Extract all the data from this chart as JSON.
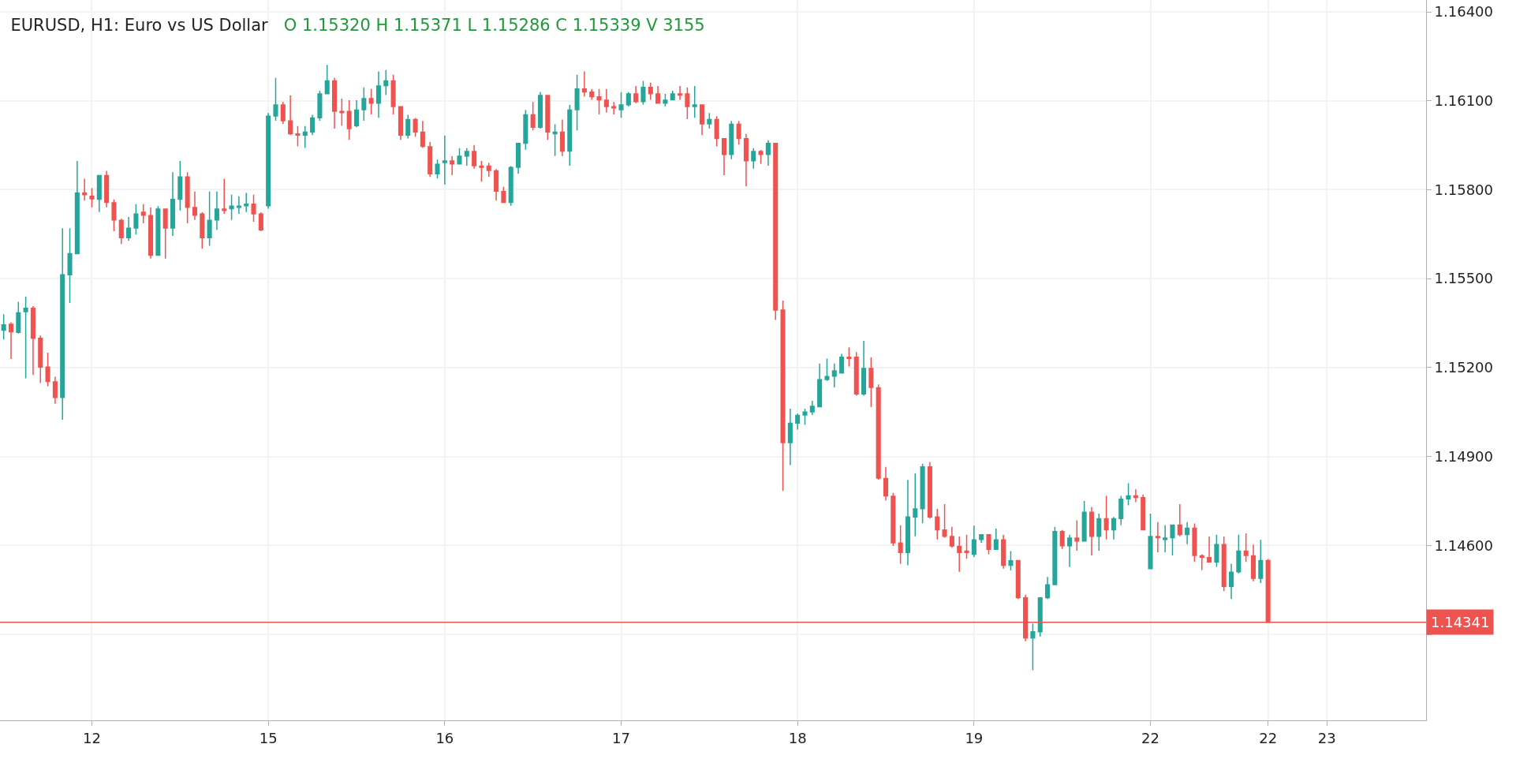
{
  "chart_data": {
    "type": "candlestick",
    "title": "EURUSD, H1: Euro vs US Dollar",
    "subtitle": "O 1.15320 H 1.15371 L 1.15286 C 1.15339 V 3155",
    "colors": [
      "#26a69a",
      "#ef5350",
      "#26a69a",
      "#26a69a",
      "#ef5350",
      "#ef5350",
      "#ef5350",
      "#ef5350",
      "#26a69a",
      "#26a69a",
      "#26a69a",
      "#ef5350",
      "#ef5350",
      "#26a69a",
      "#ef5350",
      "#ef5350",
      "#ef5350",
      "#26a69a",
      "#26a69a",
      "#ef5350",
      "#ef5350",
      "#26a69a",
      "#ef5350",
      "#26a69a",
      "#26a69a",
      "#ef5350",
      "#ef5350",
      "#ef5350",
      "#26a69a",
      "#26a69a",
      "#ef5350",
      "#26a69a",
      "#26a69a",
      "#26a69a",
      "#ef5350",
      "#ef5350",
      "#26a69a",
      "#26a69a",
      "#ef5350",
      "#ef5350",
      "#ef5350",
      "#26a69a",
      "#26a69a",
      "#26a69a",
      "#26a69a",
      "#ef5350",
      "#ef5350",
      "#ef5350",
      "#26a69a",
      "#26a69a",
      "#ef5350",
      "#26a69a",
      "#26a69a",
      "#ef5350",
      "#ef5350",
      "#26a69a",
      "#ef5350",
      "#ef5350",
      "#ef5350",
      "#26a69a",
      "#26a69a",
      "#ef5350",
      "#26a69a",
      "#26a69a",
      "#ef5350",
      "#ef5350",
      "#ef5350",
      "#ef5350",
      "#ef5350",
      "#26a69a",
      "#26a69a",
      "#26a69a",
      "#ef5350",
      "#26a69a",
      "#ef5350",
      "#26a69a",
      "#ef5350",
      "#26a69a",
      "#26a69a",
      "#ef5350",
      "#ef5350",
      "#ef5350",
      "#ef5350",
      "#ef5350",
      "#26a69a",
      "#26a69a",
      "#ef5350",
      "#26a69a",
      "#ef5350",
      "#ef5350",
      "#26a69a",
      "#26a69a",
      "#ef5350",
      "#ef5350",
      "#26a69a",
      "#ef5350",
      "#26a69a",
      "#ef5350",
      "#ef5350",
      "#26a69a",
      "#ef5350",
      "#ef5350",
      "#26a69a",
      "#ef5350",
      "#26a69a",
      "#ef5350",
      "#ef5350",
      "#26a69a",
      "#26a69a",
      "#26a69a",
      "#26a69a",
      "#26a69a",
      "#26a69a",
      "#26a69a",
      "#26a69a",
      "#ef5350",
      "#ef5350",
      "#26a69a",
      "#ef5350",
      "#ef5350",
      "#ef5350",
      "#ef5350",
      "#ef5350",
      "#26a69a",
      "#26a69a",
      "#26a69a",
      "#ef5350",
      "#ef5350",
      "#ef5350",
      "#ef5350",
      "#ef5350",
      "#ef5350",
      "#26a69a",
      "#26a69a",
      "#ef5350",
      "#26a69a",
      "#ef5350",
      "#26a69a",
      "#ef5350",
      "#ef5350",
      "#26a69a",
      "#26a69a",
      "#26a69a",
      "#26a69a",
      "#ef5350",
      "#26a69a",
      "#ef5350",
      "#26a69a",
      "#ef5350",
      "#26a69a",
      "#ef5350",
      "#26a69a",
      "#26a69a",
      "#26a69a",
      "#ef5350",
      "#ef5350",
      "#26a69a",
      "#ef5350",
      "#26a69a",
      "#26a69a",
      "#ef5350",
      "#26a69a",
      "#ef5350",
      "#ef5350",
      "#ef5350",
      "#26a69a",
      "#ef5350",
      "#26a69a",
      "#26a69a",
      "#ef5350",
      "#ef5350",
      "#26a69a",
      "#ef5350",
      null,
      null,
      null,
      null,
      null,
      null,
      null,
      null,
      null,
      null,
      null,
      null,
      null,
      null,
      null,
      null,
      null,
      null,
      null,
      null,
      null
    ],
    "categories": [
      null,
      null,
      null,
      null,
      null,
      null,
      null,
      null,
      null,
      null,
      null,
      null,
      "12",
      null,
      null,
      null,
      null,
      null,
      null,
      null,
      null,
      null,
      null,
      null,
      null,
      null,
      null,
      null,
      null,
      null,
      null,
      null,
      null,
      null,
      null,
      null,
      "15",
      null,
      null,
      null,
      null,
      null,
      null,
      null,
      null,
      null,
      null,
      null,
      null,
      null,
      null,
      null,
      null,
      null,
      null,
      null,
      null,
      null,
      null,
      null,
      "16",
      null,
      null,
      null,
      null,
      null,
      null,
      null,
      null,
      null,
      null,
      null,
      null,
      null,
      null,
      null,
      null,
      null,
      null,
      null,
      null,
      null,
      null,
      null,
      "17",
      null,
      null,
      null,
      null,
      null,
      null,
      null,
      null,
      null,
      null,
      null,
      null,
      null,
      null,
      null,
      null,
      null,
      null,
      null,
      null,
      null,
      null,
      null,
      "18",
      null,
      null,
      null,
      null,
      null,
      null,
      null,
      null,
      null,
      null,
      null,
      null,
      null,
      null,
      null,
      null,
      null,
      null,
      null,
      null,
      null,
      null,
      null,
      "19",
      null,
      null,
      null,
      null,
      null,
      null,
      null,
      null,
      null,
      null,
      null,
      null,
      null,
      null,
      null,
      null,
      null,
      null,
      null,
      null,
      null,
      null,
      null,
      "22",
      null,
      null,
      null,
      null,
      null,
      null,
      null,
      null,
      null,
      null,
      null,
      null,
      null,
      null,
      null,
      "22",
      null,
      null,
      null,
      null,
      null,
      null,
      null,
      "23",
      null,
      null,
      null,
      null,
      null,
      null,
      null,
      null,
      null,
      null,
      null,
      null,
      null
    ],
    "ohlc": [
      [
        1.15326,
        1.1538,
        1.15295,
        1.15344
      ],
      [
        1.15346,
        1.15353,
        1.15229,
        1.15321
      ],
      [
        1.15319,
        1.15422,
        1.15315,
        1.15385
      ],
      [
        1.15389,
        1.15439,
        1.15164,
        1.154
      ],
      [
        1.154,
        1.15407,
        1.15175,
        1.15299
      ],
      [
        1.15299,
        1.15308,
        1.15148,
        1.15202
      ],
      [
        1.15202,
        1.1525,
        1.15137,
        1.15153
      ],
      [
        1.15152,
        1.15169,
        1.15078,
        1.15099
      ],
      [
        1.15099,
        1.1567,
        1.15024,
        1.15513
      ],
      [
        1.15513,
        1.1567,
        1.15418,
        1.15584
      ],
      [
        1.15584,
        1.15897,
        1.15584,
        1.15789
      ],
      [
        1.15789,
        1.15837,
        1.15763,
        1.15783
      ],
      [
        1.15778,
        1.15805,
        1.15741,
        1.15769
      ],
      [
        1.15768,
        1.15848,
        1.15725,
        1.15848
      ],
      [
        1.15848,
        1.15864,
        1.15741,
        1.15757
      ],
      [
        1.15756,
        1.15767,
        1.1566,
        1.15698
      ],
      [
        1.15697,
        1.15702,
        1.15617,
        1.15638
      ],
      [
        1.15638,
        1.15708,
        1.15628,
        1.1567
      ],
      [
        1.15671,
        1.15751,
        1.15649,
        1.15718
      ],
      [
        1.15724,
        1.15751,
        1.15687,
        1.15714
      ],
      [
        1.15713,
        1.1574,
        1.15568,
        1.15579
      ],
      [
        1.15579,
        1.15745,
        1.15579,
        1.15735
      ],
      [
        1.15735,
        1.15735,
        1.15568,
        1.15671
      ],
      [
        1.15671,
        1.15859,
        1.15644,
        1.15767
      ],
      [
        1.15768,
        1.15897,
        1.1573,
        1.15843
      ],
      [
        1.15843,
        1.15859,
        1.15687,
        1.15741
      ],
      [
        1.1574,
        1.15794,
        1.15698,
        1.15714
      ],
      [
        1.15718,
        1.15724,
        1.15601,
        1.15638
      ],
      [
        1.15638,
        1.15794,
        1.15611,
        1.15697
      ],
      [
        1.15698,
        1.15794,
        1.15665,
        1.15735
      ],
      [
        1.15735,
        1.15837,
        1.15719,
        1.1573
      ],
      [
        1.15736,
        1.15783,
        1.15698,
        1.15745
      ],
      [
        1.15741,
        1.15778,
        1.15719,
        1.15745
      ],
      [
        1.15746,
        1.15789,
        1.15725,
        1.15751
      ],
      [
        1.15751,
        1.15783,
        1.15692,
        1.15719
      ],
      [
        1.15718,
        1.15724,
        1.1566,
        1.15665
      ],
      [
        1.15746,
        1.16059,
        1.15736,
        1.16048
      ],
      [
        1.16049,
        1.16177,
        1.16033,
        1.16086
      ],
      [
        1.16086,
        1.16096,
        1.16022,
        1.16033
      ],
      [
        1.16032,
        1.16118,
        1.15984,
        1.15989
      ],
      [
        1.15988,
        1.16015,
        1.15946,
        1.15984
      ],
      [
        1.15984,
        1.16015,
        1.15941,
        1.15994
      ],
      [
        1.15995,
        1.16053,
        1.15984,
        1.16042
      ],
      [
        1.16043,
        1.16134,
        1.16033,
        1.16123
      ],
      [
        1.16124,
        1.16221,
        1.16124,
        1.16167
      ],
      [
        1.16167,
        1.16177,
        1.16006,
        1.16065
      ],
      [
        1.16064,
        1.16107,
        1.16016,
        1.1606
      ],
      [
        1.16064,
        1.16102,
        1.15968,
        1.16006
      ],
      [
        1.16016,
        1.16102,
        1.16011,
        1.16069
      ],
      [
        1.1607,
        1.16145,
        1.16033,
        1.16107
      ],
      [
        1.16107,
        1.1614,
        1.16054,
        1.16092
      ],
      [
        1.16092,
        1.16199,
        1.16043,
        1.1615
      ],
      [
        1.16151,
        1.16204,
        1.16119,
        1.16167
      ],
      [
        1.16167,
        1.16188,
        1.16054,
        1.16081
      ],
      [
        1.1608,
        1.1608,
        1.15968,
        1.15984
      ],
      [
        1.15984,
        1.16053,
        1.15973,
        1.16037
      ],
      [
        1.16037,
        1.16042,
        1.15979,
        1.15995
      ],
      [
        1.15994,
        1.16032,
        1.15941,
        1.15946
      ],
      [
        1.15945,
        1.15961,
        1.15843,
        1.15854
      ],
      [
        1.15854,
        1.15902,
        1.15838,
        1.15886
      ],
      [
        1.15892,
        1.15983,
        1.15817,
        1.15897
      ],
      [
        1.15897,
        1.15913,
        1.15849,
        1.15887
      ],
      [
        1.15887,
        1.1594,
        1.15887,
        1.15913
      ],
      [
        1.15914,
        1.1594,
        1.15881,
        1.15929
      ],
      [
        1.15929,
        1.15951,
        1.15871,
        1.15881
      ],
      [
        1.1588,
        1.15897,
        1.15827,
        1.15876
      ],
      [
        1.1588,
        1.15891,
        1.15843,
        1.15865
      ],
      [
        1.15864,
        1.1587,
        1.15763,
        1.15795
      ],
      [
        1.15794,
        1.1581,
        1.15757,
        1.15757
      ],
      [
        1.15757,
        1.1588,
        1.15746,
        1.15875
      ],
      [
        1.15876,
        1.15956,
        1.15854,
        1.15956
      ],
      [
        1.15957,
        1.16069,
        1.15935,
        1.16053
      ],
      [
        1.16053,
        1.16096,
        1.16,
        1.16011
      ],
      [
        1.16011,
        1.16129,
        1.16006,
        1.16118
      ],
      [
        1.16118,
        1.16118,
        1.15968,
        1.15995
      ],
      [
        1.15989,
        1.16021,
        1.15914,
        1.15994
      ],
      [
        1.15994,
        1.16037,
        1.15914,
        1.1593
      ],
      [
        1.1593,
        1.16086,
        1.15881,
        1.16069
      ],
      [
        1.1607,
        1.16188,
        1.16,
        1.1614
      ],
      [
        1.1614,
        1.16199,
        1.16114,
        1.1613
      ],
      [
        1.16129,
        1.1614,
        1.16103,
        1.16114
      ],
      [
        1.16113,
        1.1614,
        1.16054,
        1.16103
      ],
      [
        1.16102,
        1.1614,
        1.1606,
        1.16081
      ],
      [
        1.1608,
        1.16096,
        1.16054,
        1.16076
      ],
      [
        1.1607,
        1.16129,
        1.16043,
        1.16086
      ],
      [
        1.16087,
        1.16129,
        1.16081,
        1.16123
      ],
      [
        1.16123,
        1.1615,
        1.16092,
        1.16097
      ],
      [
        1.16097,
        1.16167,
        1.16087,
        1.16145
      ],
      [
        1.16145,
        1.16161,
        1.16103,
        1.16124
      ],
      [
        1.16123,
        1.1615,
        1.16092,
        1.16092
      ],
      [
        1.16092,
        1.16123,
        1.16081,
        1.16102
      ],
      [
        1.16103,
        1.16134,
        1.16103,
        1.16123
      ],
      [
        1.16123,
        1.1615,
        1.16103,
        1.16119
      ],
      [
        1.16123,
        1.16145,
        1.16038,
        1.16081
      ],
      [
        1.16081,
        1.1615,
        1.16043,
        1.16086
      ],
      [
        1.16086,
        1.16086,
        1.15984,
        1.16022
      ],
      [
        1.16022,
        1.16059,
        1.16006,
        1.16037
      ],
      [
        1.16037,
        1.16048,
        1.15946,
        1.15973
      ],
      [
        1.15972,
        1.15972,
        1.15849,
        1.15919
      ],
      [
        1.15919,
        1.16032,
        1.15903,
        1.16021
      ],
      [
        1.16021,
        1.16032,
        1.15952,
        1.15973
      ],
      [
        1.15972,
        1.15988,
        1.15811,
        1.15898
      ],
      [
        1.15898,
        1.1594,
        1.15871,
        1.15929
      ],
      [
        1.15929,
        1.15934,
        1.15887,
        1.15919
      ],
      [
        1.15919,
        1.15967,
        1.15881,
        1.15956
      ],
      [
        1.15956,
        1.15956,
        1.15361,
        1.15394
      ],
      [
        1.15394,
        1.15426,
        1.14784,
        1.14947
      ],
      [
        1.14947,
        1.15061,
        1.14871,
        1.15012
      ],
      [
        1.15013,
        1.15045,
        1.14991,
        1.15039
      ],
      [
        1.1504,
        1.15061,
        1.15007,
        1.1505
      ],
      [
        1.15051,
        1.15088,
        1.1504,
        1.15069
      ],
      [
        1.15068,
        1.15214,
        1.15068,
        1.15159
      ],
      [
        1.1516,
        1.1523,
        1.15155,
        1.1517
      ],
      [
        1.15171,
        1.15214,
        1.15133,
        1.15189
      ],
      [
        1.15182,
        1.15246,
        1.15182,
        1.15235
      ],
      [
        1.15235,
        1.15268,
        1.15204,
        1.15231
      ],
      [
        1.15235,
        1.15252,
        1.15105,
        1.15111
      ],
      [
        1.15111,
        1.1529,
        1.15105,
        1.15197
      ],
      [
        1.15197,
        1.15235,
        1.15067,
        1.15133
      ],
      [
        1.15132,
        1.15143,
        1.14822,
        1.14827
      ],
      [
        1.14826,
        1.14865,
        1.14751,
        1.14767
      ],
      [
        1.14766,
        1.14777,
        1.14598,
        1.14609
      ],
      [
        1.14608,
        1.14668,
        1.14538,
        1.14576
      ],
      [
        1.14576,
        1.14821,
        1.14533,
        1.14696
      ],
      [
        1.14696,
        1.14843,
        1.14631,
        1.14723
      ],
      [
        1.14724,
        1.14876,
        1.14675,
        1.14865
      ],
      [
        1.14865,
        1.14881,
        1.14691,
        1.14696
      ],
      [
        1.14696,
        1.14723,
        1.1462,
        1.14653
      ],
      [
        1.14652,
        1.14739,
        1.14626,
        1.14631
      ],
      [
        1.1463,
        1.14663,
        1.14593,
        1.14598
      ],
      [
        1.14597,
        1.1463,
        1.14511,
        1.14576
      ],
      [
        1.14581,
        1.14636,
        1.14555,
        1.14576
      ],
      [
        1.1457,
        1.14667,
        1.14561,
        1.14619
      ],
      [
        1.1462,
        1.14636,
        1.14609,
        1.14636
      ],
      [
        1.14636,
        1.14636,
        1.1457,
        1.14587
      ],
      [
        1.14587,
        1.14657,
        1.14587,
        1.14619
      ],
      [
        1.14619,
        1.14636,
        1.14522,
        1.14533
      ],
      [
        1.14533,
        1.14581,
        1.14516,
        1.14548
      ],
      [
        1.14549,
        1.14549,
        1.14419,
        1.14424
      ],
      [
        1.14423,
        1.14434,
        1.14277,
        1.14288
      ],
      [
        1.14288,
        1.14337,
        1.14179,
        1.14309
      ],
      [
        1.14309,
        1.14423,
        1.14293,
        1.14423
      ],
      [
        1.14424,
        1.14494,
        1.14419,
        1.14467
      ],
      [
        1.14468,
        1.14663,
        1.14468,
        1.14647
      ],
      [
        1.14647,
        1.14652,
        1.14588,
        1.14599
      ],
      [
        1.14599,
        1.14636,
        1.14528,
        1.14625
      ],
      [
        1.14625,
        1.14685,
        1.14582,
        1.14615
      ],
      [
        1.14615,
        1.1475,
        1.14615,
        1.14712
      ],
      [
        1.14712,
        1.14729,
        1.14566,
        1.14631
      ],
      [
        1.14631,
        1.14707,
        1.14582,
        1.1469
      ],
      [
        1.1469,
        1.14767,
        1.1462,
        1.14653
      ],
      [
        1.14653,
        1.14696,
        1.1462,
        1.1469
      ],
      [
        1.14691,
        1.14767,
        1.14669,
        1.14756
      ],
      [
        1.14757,
        1.1481,
        1.14735,
        1.14767
      ],
      [
        1.14767,
        1.14789,
        1.14746,
        1.14762
      ],
      [
        1.14761,
        1.14772,
        1.14653,
        1.14653
      ],
      [
        1.14522,
        1.14707,
        1.14522,
        1.1463
      ],
      [
        1.1463,
        1.14679,
        1.14577,
        1.14626
      ],
      [
        1.1462,
        1.14669,
        1.14577,
        1.14625
      ],
      [
        1.14626,
        1.14669,
        1.14566,
        1.14669
      ],
      [
        1.14669,
        1.14739,
        1.14631,
        1.14637
      ],
      [
        1.14637,
        1.14679,
        1.14604,
        1.14658
      ],
      [
        1.14658,
        1.14674,
        1.14544,
        1.14566
      ],
      [
        1.14565,
        1.1457,
        1.14517,
        1.1456
      ],
      [
        1.14559,
        1.1463,
        1.14544,
        1.14544
      ],
      [
        1.14544,
        1.14636,
        1.14528,
        1.14603
      ],
      [
        1.14603,
        1.1463,
        1.14446,
        1.14462
      ],
      [
        1.14462,
        1.14538,
        1.14419,
        1.1451
      ],
      [
        1.14511,
        1.14636,
        1.14506,
        1.14581
      ],
      [
        1.14581,
        1.14641,
        1.14544,
        1.14566
      ],
      [
        1.14565,
        1.14603,
        1.14479,
        1.14489
      ],
      [
        1.14489,
        1.14619,
        1.14473,
        1.14549
      ],
      [
        1.14549,
        1.14554,
        1.14341,
        1.14341
      ],
      null,
      null,
      null,
      null,
      null,
      null,
      null,
      null,
      null,
      null,
      null,
      null,
      null,
      null,
      null,
      null,
      null,
      null,
      null,
      null,
      null
    ],
    "ylim": [
      1.1401,
      1.1644
    ],
    "yticks": [
      {
        "value": 1.143,
        "label": null
      },
      {
        "value": 1.146,
        "label": "1.14600"
      },
      {
        "value": 1.149,
        "label": "1.14900"
      },
      {
        "value": 1.152,
        "label": "1.15200"
      },
      {
        "value": 1.155,
        "label": "1.15500"
      },
      {
        "value": 1.158,
        "label": "1.15800"
      },
      {
        "value": 1.161,
        "label": "1.16100"
      },
      {
        "value": 1.164,
        "label": "1.16400"
      }
    ],
    "ref_lines": [
      {
        "axis": "y",
        "value": 1.14341,
        "label": "1.14341",
        "color": "#ef5350"
      }
    ],
    "grid": true
  }
}
